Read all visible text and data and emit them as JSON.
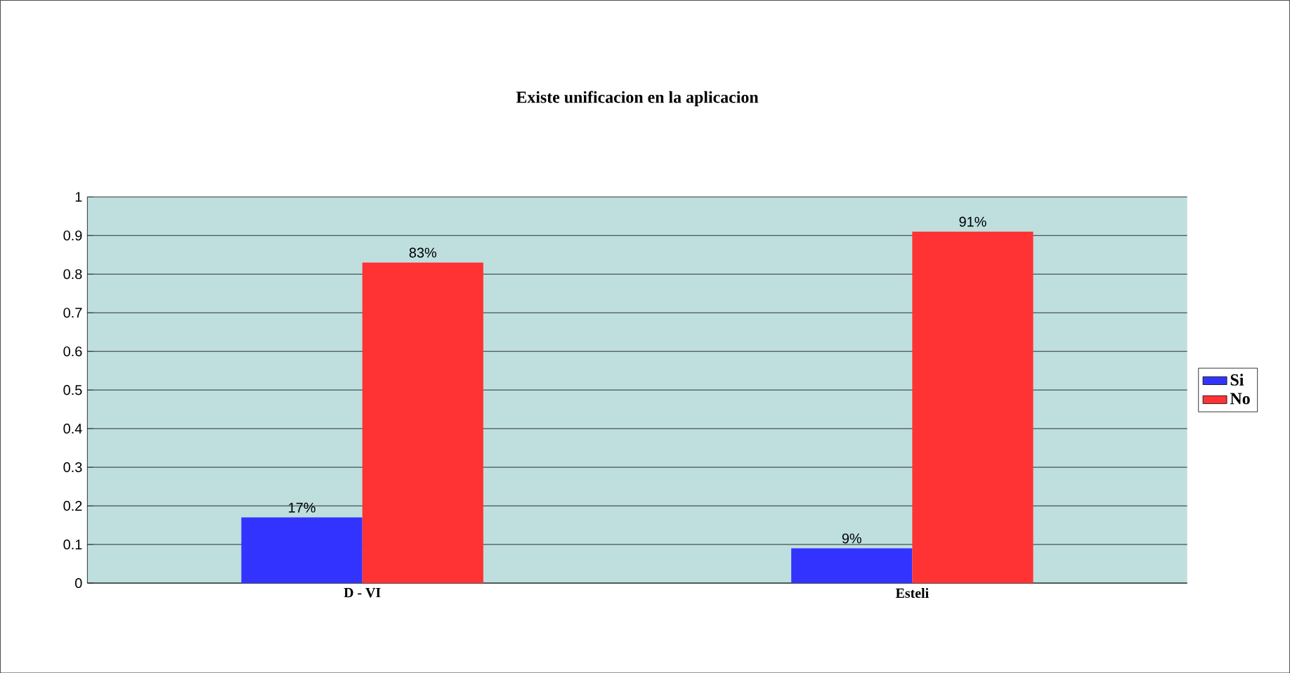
{
  "chart_data": {
    "type": "bar",
    "title": "Existe unificacion en la aplicacion",
    "categories": [
      "D - VI",
      "Esteli"
    ],
    "series": [
      {
        "name": "Si",
        "color": "#3333ff",
        "values": [
          0.17,
          0.09
        ],
        "value_labels": [
          "17%",
          "9%"
        ]
      },
      {
        "name": "No",
        "color": "#ff3333",
        "values": [
          0.83,
          0.91
        ],
        "value_labels": [
          "83%",
          "91%"
        ]
      }
    ],
    "ylim": [
      0,
      1
    ],
    "yticks": [
      0,
      0.1,
      0.2,
      0.3,
      0.4,
      0.5,
      0.6,
      0.7,
      0.8,
      0.9,
      1
    ],
    "grid": "y",
    "legend": "right"
  }
}
